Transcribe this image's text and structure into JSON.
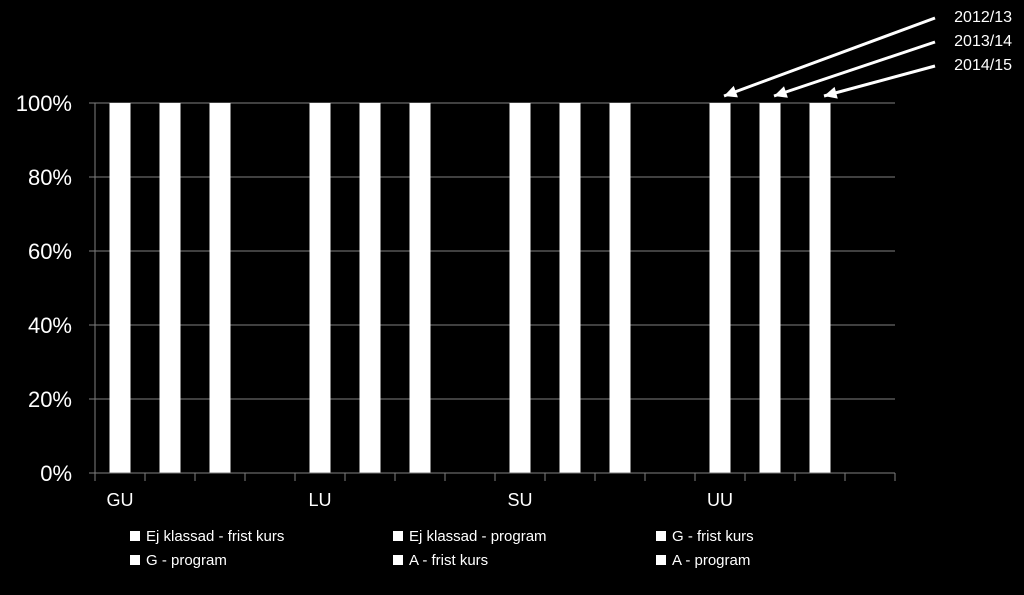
{
  "chart_data": {
    "type": "bar",
    "stacked": true,
    "percent": true,
    "categories": [
      "GU",
      "LU",
      "SU",
      "UU"
    ],
    "years": [
      "2012/13",
      "2013/14",
      "2014/15"
    ],
    "series": [
      {
        "name": "Ej klassad - frist kurs",
        "color": "#ffffff"
      },
      {
        "name": "Ej klassad - program",
        "color": "#ffffff"
      },
      {
        "name": "G - frist kurs",
        "color": "#ffffff"
      },
      {
        "name": "G - program",
        "color": "#ffffff"
      },
      {
        "name": "A - frist kurs",
        "color": "#ffffff"
      },
      {
        "name": "A - program",
        "color": "#ffffff"
      }
    ],
    "bar_totals": [
      [
        100,
        100,
        100
      ],
      [
        100,
        100,
        100
      ],
      [
        100,
        100,
        100
      ],
      [
        100,
        100,
        100
      ]
    ],
    "y_ticks": [
      "0%",
      "20%",
      "40%",
      "60%",
      "80%",
      "100%"
    ],
    "ylim": [
      0,
      100
    ],
    "grid": true,
    "legend_position": "bottom",
    "background": "#000000",
    "bar_color": "#ffffff"
  }
}
